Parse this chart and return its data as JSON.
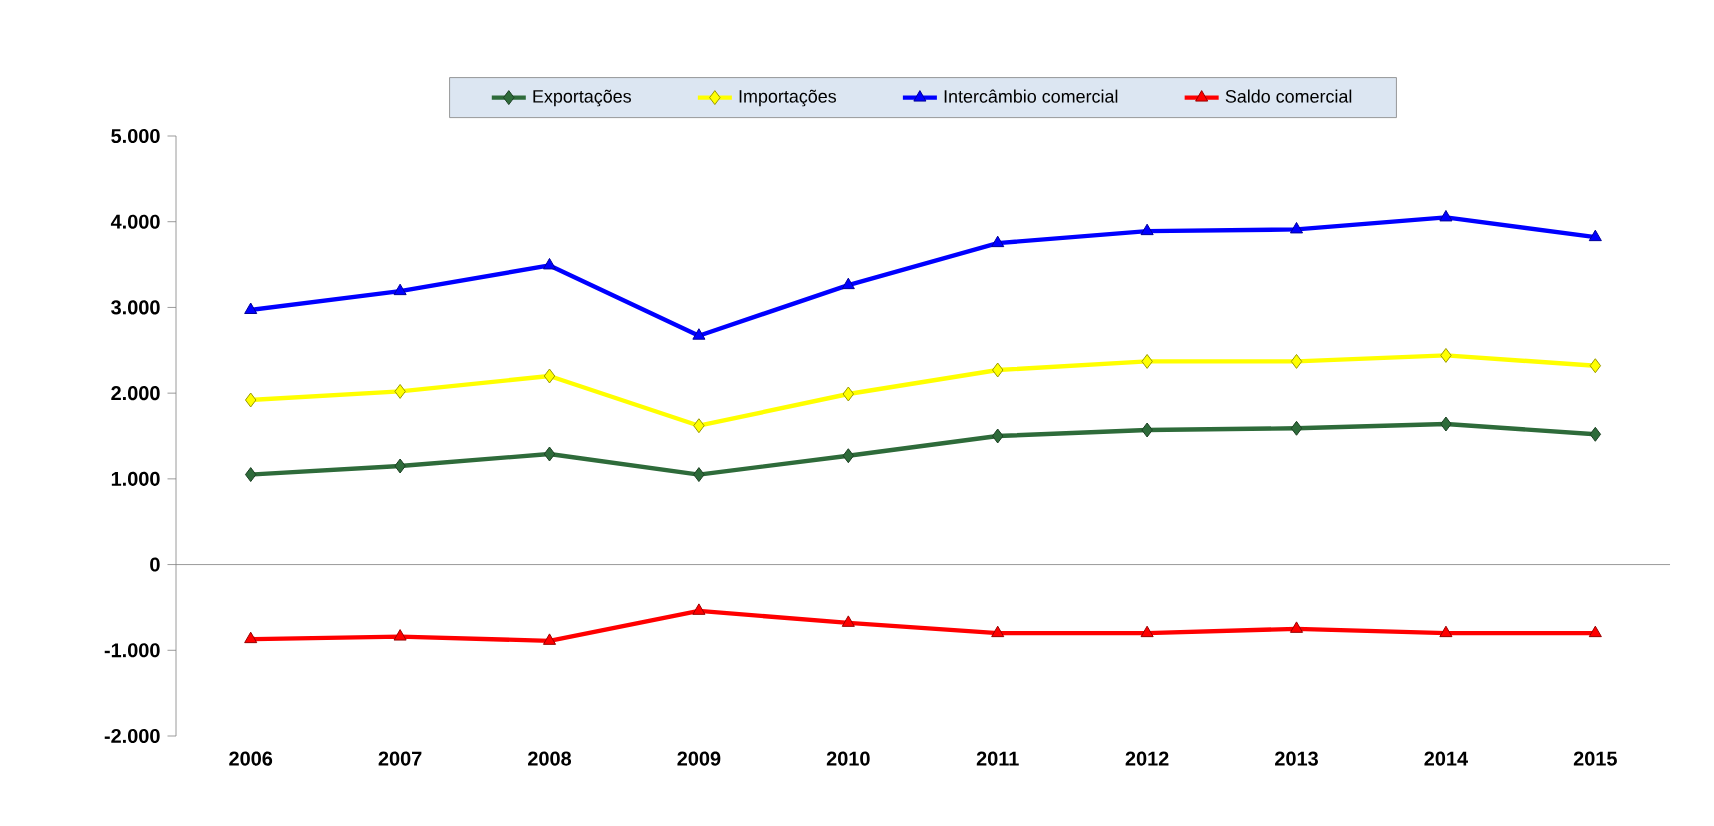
{
  "chart_data": {
    "type": "line",
    "categories": [
      "2006",
      "2007",
      "2008",
      "2009",
      "2010",
      "2011",
      "2012",
      "2013",
      "2014",
      "2015"
    ],
    "series": [
      {
        "name": "Exportações",
        "color": "#2e6b3a",
        "marker": "diamond",
        "values": [
          1050,
          1150,
          1290,
          1050,
          1270,
          1500,
          1570,
          1590,
          1640,
          1520
        ]
      },
      {
        "name": "Importações",
        "color": "#ffff00",
        "marker": "diamond",
        "values": [
          1920,
          2020,
          2200,
          1620,
          1990,
          2270,
          2370,
          2370,
          2440,
          2320
        ]
      },
      {
        "name": "Intercâmbio comercial",
        "color": "#0000ff",
        "marker": "triangle",
        "values": [
          2970,
          3190,
          3490,
          2670,
          3260,
          3750,
          3890,
          3910,
          4050,
          3820
        ]
      },
      {
        "name": "Saldo comercial",
        "color": "#ff0000",
        "marker": "triangle",
        "values": [
          -870,
          -840,
          -890,
          -540,
          -680,
          -800,
          -800,
          -750,
          -800,
          -800
        ]
      }
    ],
    "ylim": [
      -2000,
      5000
    ],
    "yticks": [
      {
        "value": -2000,
        "label": "-2.000"
      },
      {
        "value": -1000,
        "label": "-1.000"
      },
      0,
      {
        "value": 1000,
        "label": "1.000"
      },
      {
        "value": 2000,
        "label": "2.000"
      },
      {
        "value": 3000,
        "label": "3.000"
      },
      {
        "value": 4000,
        "label": "4.000"
      },
      {
        "value": 5000,
        "label": "5.000"
      }
    ],
    "legend": "top",
    "line_style": "solid"
  }
}
